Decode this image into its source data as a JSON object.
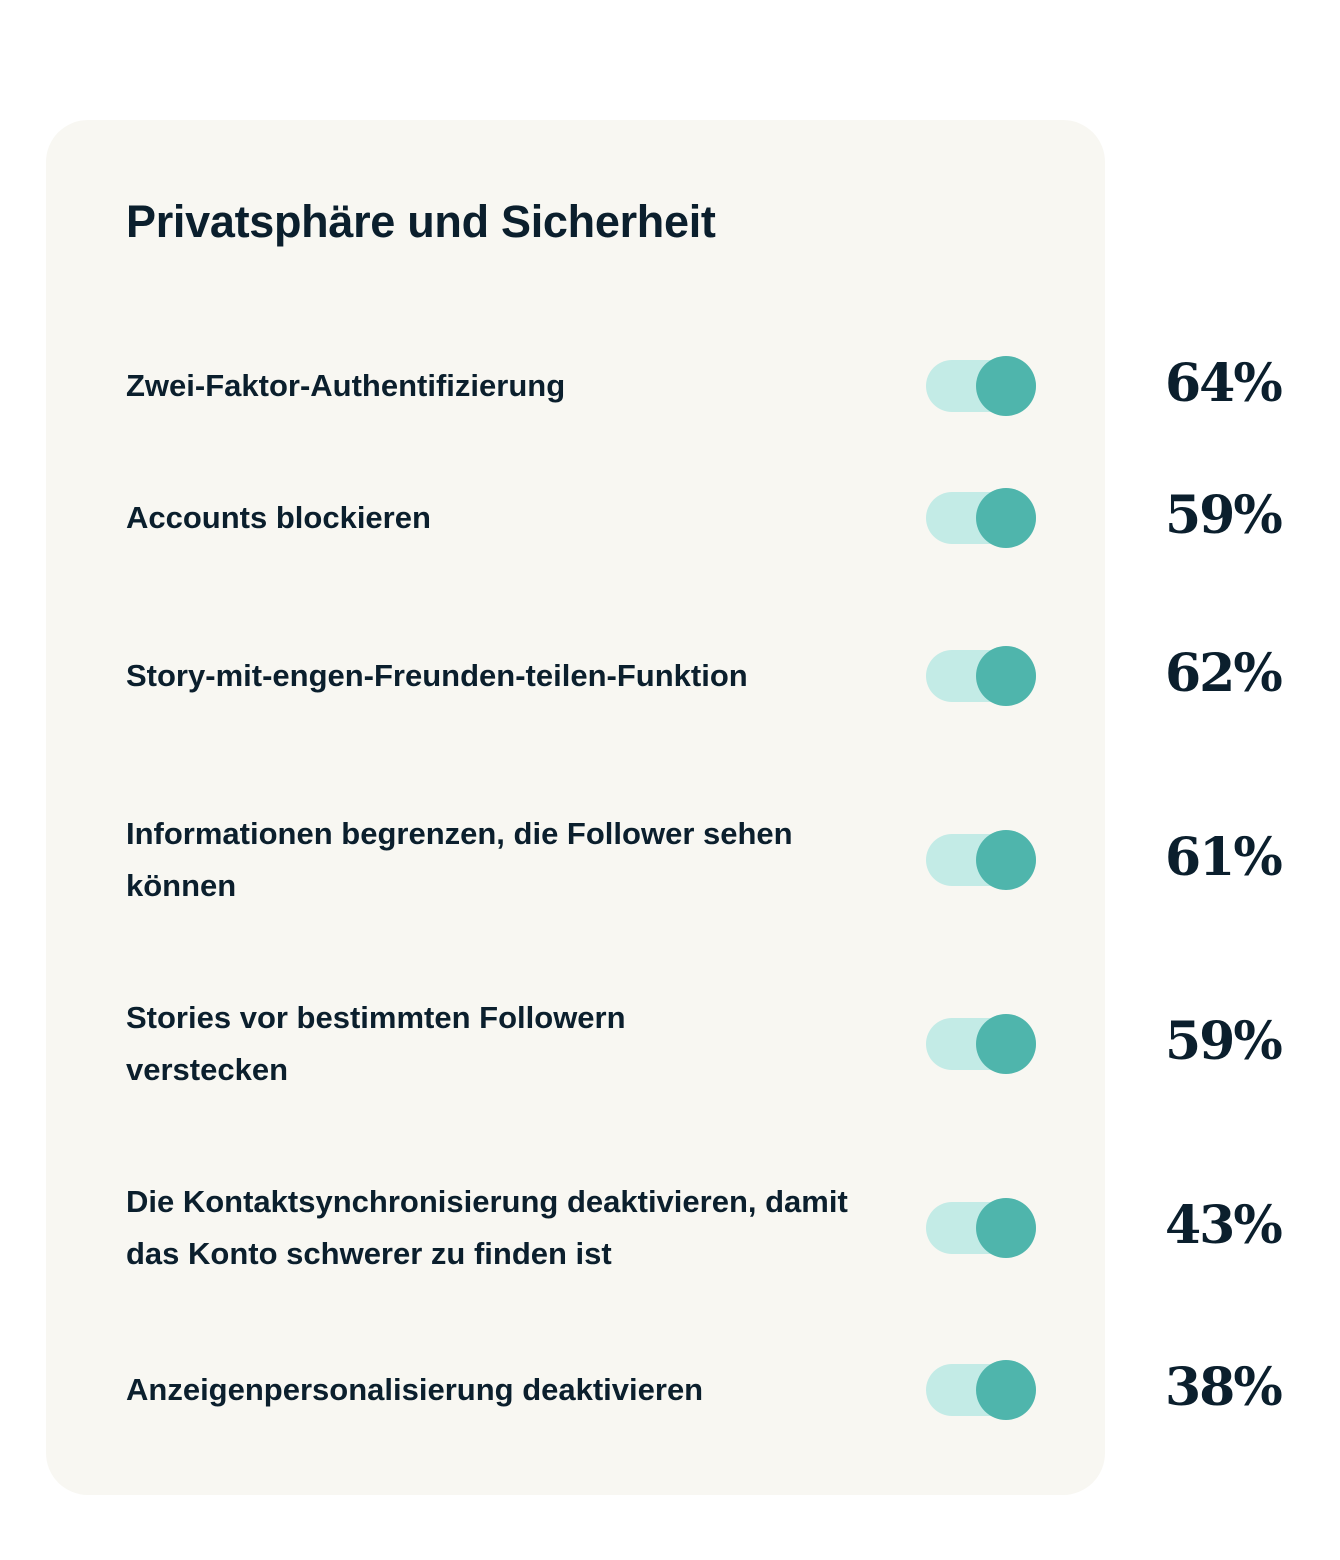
{
  "title": "Privatsphäre und Sicherheit",
  "colors": {
    "card_bg": "#f8f7f2",
    "text": "#0b1f2d",
    "toggle_track": "#c3ebe6",
    "toggle_knob": "#4fb5ac"
  },
  "items": [
    {
      "label": "Zwei-Faktor-Authentifizierung",
      "percent": "64%",
      "toggle_on": true
    },
    {
      "label": "Accounts blockieren",
      "percent": "59%",
      "toggle_on": true
    },
    {
      "label": "Story-mit-engen-Freunden-teilen-Funktion",
      "percent": "62%",
      "toggle_on": true
    },
    {
      "label": "Informationen begrenzen, die Follower sehen können",
      "percent": "61%",
      "toggle_on": true
    },
    {
      "label": "Stories vor bestimmten Followern verstecken",
      "percent": "59%",
      "toggle_on": true
    },
    {
      "label": "Die Kontaktsynchronisierung deaktivieren, damit das Konto schwerer zu finden ist",
      "percent": "43%",
      "toggle_on": true
    },
    {
      "label": "Anzeigenpersonalisierung deaktivieren",
      "percent": "38%",
      "toggle_on": true
    }
  ]
}
